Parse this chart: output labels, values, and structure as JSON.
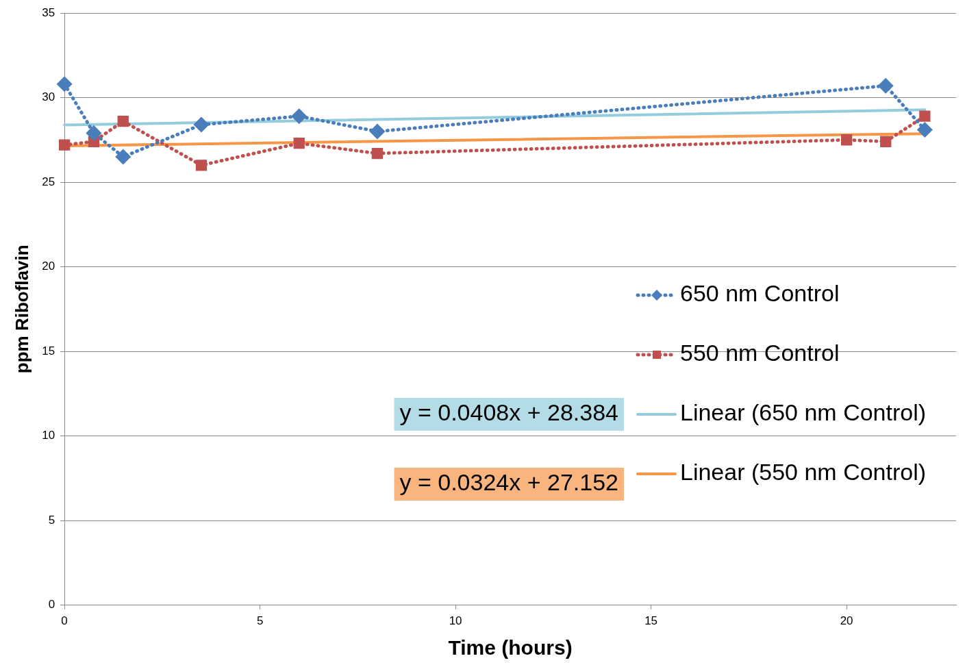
{
  "chart_data": {
    "type": "line",
    "xlabel": "Time (hours)",
    "ylabel": "ppm Riboflavin",
    "xlim": [
      0,
      22.8
    ],
    "xticks": [
      0,
      5,
      10,
      15,
      20
    ],
    "ylim": [
      0,
      35
    ],
    "yticks": [
      0,
      5,
      10,
      15,
      20,
      25,
      30,
      35
    ],
    "grid": "y",
    "legend": "right",
    "series": [
      {
        "name": "650 nm Control",
        "color": "#4a7ebb",
        "marker": "diamond",
        "line_style": "dotted",
        "x": [
          0,
          0.75,
          1.5,
          3.5,
          6,
          8,
          21,
          22
        ],
        "values": [
          30.8,
          27.9,
          26.5,
          28.4,
          28.9,
          28.0,
          30.7,
          28.1
        ]
      },
      {
        "name": "550 nm Control",
        "color": "#c0504d",
        "marker": "square",
        "line_style": "dotted",
        "x": [
          0,
          0.75,
          1.5,
          3.5,
          6,
          8,
          20,
          21,
          22
        ],
        "values": [
          27.2,
          27.4,
          28.6,
          26.0,
          27.3,
          26.7,
          27.5,
          27.4,
          28.9
        ]
      },
      {
        "name": "Linear (650 nm Control)",
        "color": "#93cddd",
        "marker": "none",
        "line_style": "solid",
        "x": [
          0,
          22
        ],
        "values": [
          28.38,
          29.28
        ]
      },
      {
        "name": "Linear (550 nm Control)",
        "color": "#f79646",
        "marker": "none",
        "line_style": "solid",
        "x": [
          0,
          22
        ],
        "values": [
          27.15,
          27.87
        ]
      }
    ],
    "annotations": [
      "y = 0.0408x + 28.384",
      "y = 0.0324x + 27.152"
    ]
  }
}
